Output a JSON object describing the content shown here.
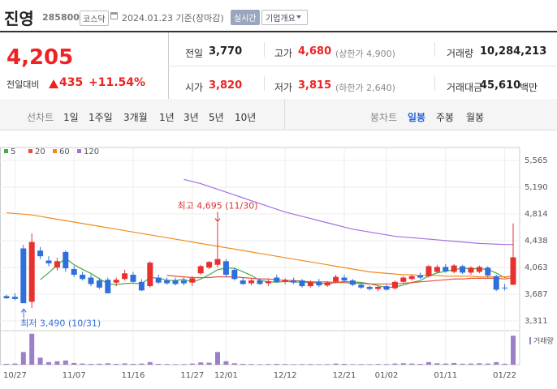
{
  "header": {
    "name": "진영",
    "code": "285800",
    "market": "코스닥",
    "date": "2024.01.23 기준(장마감)",
    "buttons": [
      "실시간",
      "기업개요"
    ]
  },
  "quote": {
    "price": "4,205",
    "change_label": "전일대비",
    "change": "435",
    "change_pct": "+11.54%"
  },
  "stats": [
    {
      "label": "전일",
      "value": "3,770"
    },
    {
      "label": "고가",
      "value": "4,680",
      "note": "(상한가 4,900)"
    },
    {
      "label": "거래량",
      "value": "10,284,213"
    },
    {
      "label": "시가",
      "value": "3,820"
    },
    {
      "label": "저가",
      "value": "3,815",
      "note": "(하한가 2,640)"
    },
    {
      "label": "거래대금",
      "value": "45,610",
      "unit": "백만"
    }
  ],
  "tabs": {
    "line_chart": "선차트",
    "periods": [
      "1일",
      "1주일",
      "3개월",
      "1년",
      "3년",
      "5년",
      "10년"
    ],
    "candle_chart": "봉차트",
    "intervals": [
      "일봉",
      "주봉",
      "월봉"
    ]
  },
  "chart_data": {
    "type": "candlestick",
    "categories": [
      null,
      "10/27",
      null,
      null,
      null,
      null,
      null,
      null,
      "11/07",
      null,
      null,
      null,
      null,
      null,
      null,
      "11/16",
      null,
      null,
      null,
      null,
      null,
      null,
      "11/27",
      null,
      null,
      null,
      "12/01",
      null,
      null,
      null,
      null,
      null,
      null,
      "12/12",
      null,
      null,
      null,
      null,
      null,
      null,
      "12/21",
      null,
      null,
      null,
      null,
      "01/02",
      null,
      null,
      null,
      null,
      null,
      null,
      "01/11",
      null,
      null,
      null,
      null,
      null,
      null,
      "01/22",
      null
    ],
    "open": [
      3660,
      3650,
      4330,
      3580,
      4300,
      4160,
      4060,
      4280,
      4040,
      3960,
      3920,
      3880,
      3890,
      3850,
      3900,
      3960,
      3860,
      3800,
      3920,
      3880,
      3880,
      3880,
      3850,
      3980,
      4060,
      4100,
      4150,
      4030,
      3880,
      3840,
      3880,
      3840,
      3920,
      3860,
      3880,
      3880,
      3800,
      3860,
      3810,
      3860,
      3920,
      3880,
      3820,
      3790,
      3760,
      3800,
      3770,
      3860,
      3900,
      3950,
      3940,
      4000,
      4070,
      4000,
      4080,
      3990,
      4000,
      4060,
      3940,
      3780,
      3820
    ],
    "high": [
      3680,
      3700,
      4380,
      4540,
      4350,
      4220,
      4200,
      4300,
      4080,
      4000,
      3960,
      3910,
      3920,
      3920,
      4030,
      4000,
      3900,
      4150,
      3960,
      3920,
      3920,
      3920,
      3940,
      4100,
      4150,
      4695,
      4180,
      4060,
      3920,
      3900,
      3910,
      3900,
      3960,
      3910,
      3920,
      3900,
      3880,
      3900,
      3870,
      3960,
      3960,
      3900,
      3840,
      3810,
      3800,
      3820,
      3880,
      3940,
      3960,
      3990,
      4100,
      4100,
      4110,
      4110,
      4100,
      4080,
      4090,
      4080,
      3960,
      3830,
      4680
    ],
    "low": [
      3620,
      3600,
      3560,
      3490,
      4180,
      4080,
      4020,
      4000,
      3930,
      3880,
      3800,
      3760,
      3700,
      3800,
      3880,
      3850,
      3730,
      3780,
      3830,
      3820,
      3810,
      3810,
      3800,
      3960,
      4040,
      4060,
      3930,
      3880,
      3820,
      3810,
      3820,
      3800,
      3850,
      3830,
      3830,
      3780,
      3780,
      3790,
      3790,
      3840,
      3850,
      3800,
      3760,
      3740,
      3730,
      3740,
      3750,
      3840,
      3880,
      3900,
      3920,
      3980,
      3990,
      3980,
      3970,
      3960,
      3980,
      3920,
      3730,
      3740,
      3815
    ],
    "close": [
      3630,
      3620,
      3560,
      4420,
      4220,
      4120,
      4150,
      4050,
      3960,
      3900,
      3830,
      3780,
      3700,
      3890,
      3980,
      3860,
      3740,
      4130,
      3850,
      3840,
      3830,
      3840,
      3910,
      4080,
      4140,
      4180,
      3960,
      3900,
      3830,
      3880,
      3830,
      3870,
      3860,
      3890,
      3850,
      3800,
      3860,
      3810,
      3850,
      3930,
      3880,
      3820,
      3780,
      3760,
      3790,
      3750,
      3860,
      3920,
      3940,
      3920,
      4080,
      4070,
      4010,
      4090,
      3990,
      4060,
      4070,
      3950,
      3750,
      3770,
      4205
    ],
    "volume": [
      300000,
      400000,
      4500000,
      11000000,
      2500000,
      900000,
      1200000,
      1500000,
      600000,
      400000,
      300000,
      350000,
      500000,
      300000,
      450000,
      300000,
      400000,
      900000,
      300000,
      250000,
      200000,
      220000,
      400000,
      800000,
      700000,
      4500000,
      1200000,
      500000,
      300000,
      250000,
      200000,
      250000,
      300000,
      250000,
      200000,
      220000,
      250000,
      200000,
      220000,
      400000,
      300000,
      200000,
      220000,
      200000,
      250000,
      220000,
      400000,
      500000,
      400000,
      300000,
      900000,
      500000,
      400000,
      600000,
      350000,
      400000,
      500000,
      400000,
      900000,
      350000,
      10284213
    ],
    "volume_label": "거래량",
    "volume_color": "#9b7fc9",
    "volume_lim": [
      0,
      11500000
    ],
    "up_color": "#e8312f",
    "down_color": "#2f6fdc",
    "series": [
      {
        "name": "5",
        "color": "#48a948",
        "values": [
          null,
          null,
          null,
          null,
          3890,
          3988,
          4094,
          4192,
          4100,
          4036,
          3978,
          3904,
          3834,
          3820,
          3836,
          3842,
          3834,
          3920,
          3912,
          3884,
          3878,
          3898,
          3854,
          3900,
          3960,
          4030,
          4054,
          4052,
          4002,
          3950,
          3880,
          3862,
          3854,
          3866,
          3860,
          3854,
          3852,
          3842,
          3834,
          3850,
          3866,
          3858,
          3852,
          3834,
          3806,
          3780,
          3788,
          3816,
          3852,
          3878,
          3944,
          3986,
          4008,
          4034,
          4048,
          4044,
          4044,
          4034,
          3984,
          3920,
          3949
        ]
      },
      {
        "name": "20",
        "color": "#e6503e",
        "values": [
          null,
          null,
          null,
          null,
          null,
          null,
          null,
          null,
          null,
          null,
          null,
          null,
          null,
          null,
          null,
          null,
          null,
          null,
          null,
          3950,
          3940,
          3930,
          3920,
          3920,
          3920,
          3930,
          3930,
          3930,
          3920,
          3910,
          3900,
          3900,
          3890,
          3880,
          3880,
          3870,
          3860,
          3860,
          3860,
          3850,
          3850,
          3840,
          3840,
          3830,
          3830,
          3830,
          3830,
          3840,
          3850,
          3860,
          3870,
          3880,
          3890,
          3900,
          3900,
          3910,
          3910,
          3910,
          3910,
          3900,
          3920
        ]
      },
      {
        "name": "60",
        "color": "#f08c1e",
        "values": [
          4830,
          4820,
          4810,
          4800,
          4780,
          4760,
          4740,
          4720,
          4700,
          4680,
          4660,
          4640,
          4620,
          4600,
          4580,
          4560,
          4540,
          4520,
          4500,
          4480,
          4460,
          4440,
          4420,
          4400,
          4380,
          4360,
          4340,
          4320,
          4300,
          4280,
          4260,
          4240,
          4220,
          4200,
          4180,
          4160,
          4140,
          4120,
          4100,
          4080,
          4060,
          4040,
          4020,
          4000,
          3990,
          3980,
          3970,
          3960,
          3960,
          3950,
          3950,
          3950,
          3940,
          3940,
          3940,
          3940,
          3930,
          3930,
          3930,
          3930,
          3940
        ]
      },
      {
        "name": "120",
        "color": "#a56fe0",
        "values": [
          null,
          null,
          null,
          null,
          null,
          null,
          null,
          null,
          null,
          null,
          null,
          null,
          null,
          null,
          null,
          null,
          null,
          null,
          null,
          null,
          null,
          5300,
          5270,
          5240,
          5200,
          5160,
          5120,
          5080,
          5040,
          5000,
          4960,
          4920,
          4880,
          4840,
          4810,
          4780,
          4750,
          4720,
          4690,
          4660,
          4630,
          4600,
          4580,
          4560,
          4540,
          4520,
          4500,
          4490,
          4480,
          4470,
          4460,
          4450,
          4440,
          4430,
          4420,
          4410,
          4400,
          4395,
          4390,
          4385,
          4385
        ]
      }
    ],
    "ylim": [
      3209,
      5656
    ],
    "yticks": [
      {
        "value": 3311,
        "label": "3,311"
      },
      {
        "value": 3687,
        "label": "3,687"
      },
      {
        "value": 4063,
        "label": "4,063"
      },
      {
        "value": 4438,
        "label": "4,438"
      },
      {
        "value": 4814,
        "label": "4,814"
      },
      {
        "value": 5190,
        "label": "5,190"
      },
      {
        "value": 5565,
        "label": "5,565"
      }
    ],
    "grid": true,
    "annotations": {
      "high": "최고 4,695 (11/30)",
      "low": "최저 3,490 (10/31)"
    }
  }
}
